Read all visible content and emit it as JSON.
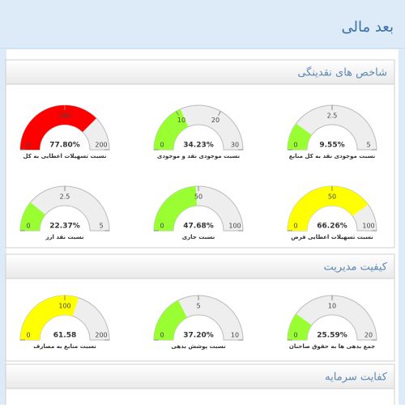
{
  "header": {
    "title": "بعد مالی"
  },
  "sections": [
    {
      "title": "شاخص های نقدینگی",
      "gauges": [
        {
          "caption": "نسبت موجودی نقد به کل منابع",
          "label": "9.55%",
          "ticks": [
            0,
            2.5,
            5
          ],
          "fill": 1,
          "color": "#99ff33"
        },
        {
          "caption": "نسبت موجودی نقد و موجودی",
          "label": "34.23%",
          "ticks": [
            0,
            10,
            20,
            30
          ],
          "fill": 11,
          "color": "#99ff33"
        },
        {
          "caption": "نسبت تسهیلات اعطایی به کل",
          "label": "77.80%",
          "ticks": [
            0,
            100,
            200
          ],
          "fill": 150,
          "color": "#ff0000"
        },
        {
          "caption": "نسبت تسهیلات اعطایی قرض",
          "label": "66.26%",
          "ticks": [
            0,
            50,
            100
          ],
          "fill": 80,
          "color": "#ffff00"
        },
        {
          "caption": "نسبت جاری",
          "label": "47.68%",
          "ticks": [
            0,
            50,
            100
          ],
          "fill": 48,
          "color": "#99ff33"
        },
        {
          "caption": "نسبت نقد ارز",
          "label": "22.37%",
          "ticks": [
            0,
            2.5,
            5
          ],
          "fill": 1.1,
          "color": "#99ff33"
        }
      ]
    },
    {
      "title": "کیفیت مدیریت",
      "gauges": [
        {
          "caption": "جمع بدهی ها به حقوق صاحبان",
          "label": "25.59%",
          "ticks": [
            0,
            10,
            20
          ],
          "fill": 4,
          "color": "#99ff33"
        },
        {
          "caption": "نسبت پوشش بدهی",
          "label": "37.20%",
          "ticks": [
            0,
            5,
            10
          ],
          "fill": 3.5,
          "color": "#99ff33"
        },
        {
          "caption": "نسبت منابع به مصارف",
          "label": "61.58",
          "ticks": [
            0,
            100,
            200
          ],
          "fill": 120,
          "color": "#ffff00"
        }
      ]
    },
    {
      "title": "کفایت سرمایه"
    }
  ]
}
